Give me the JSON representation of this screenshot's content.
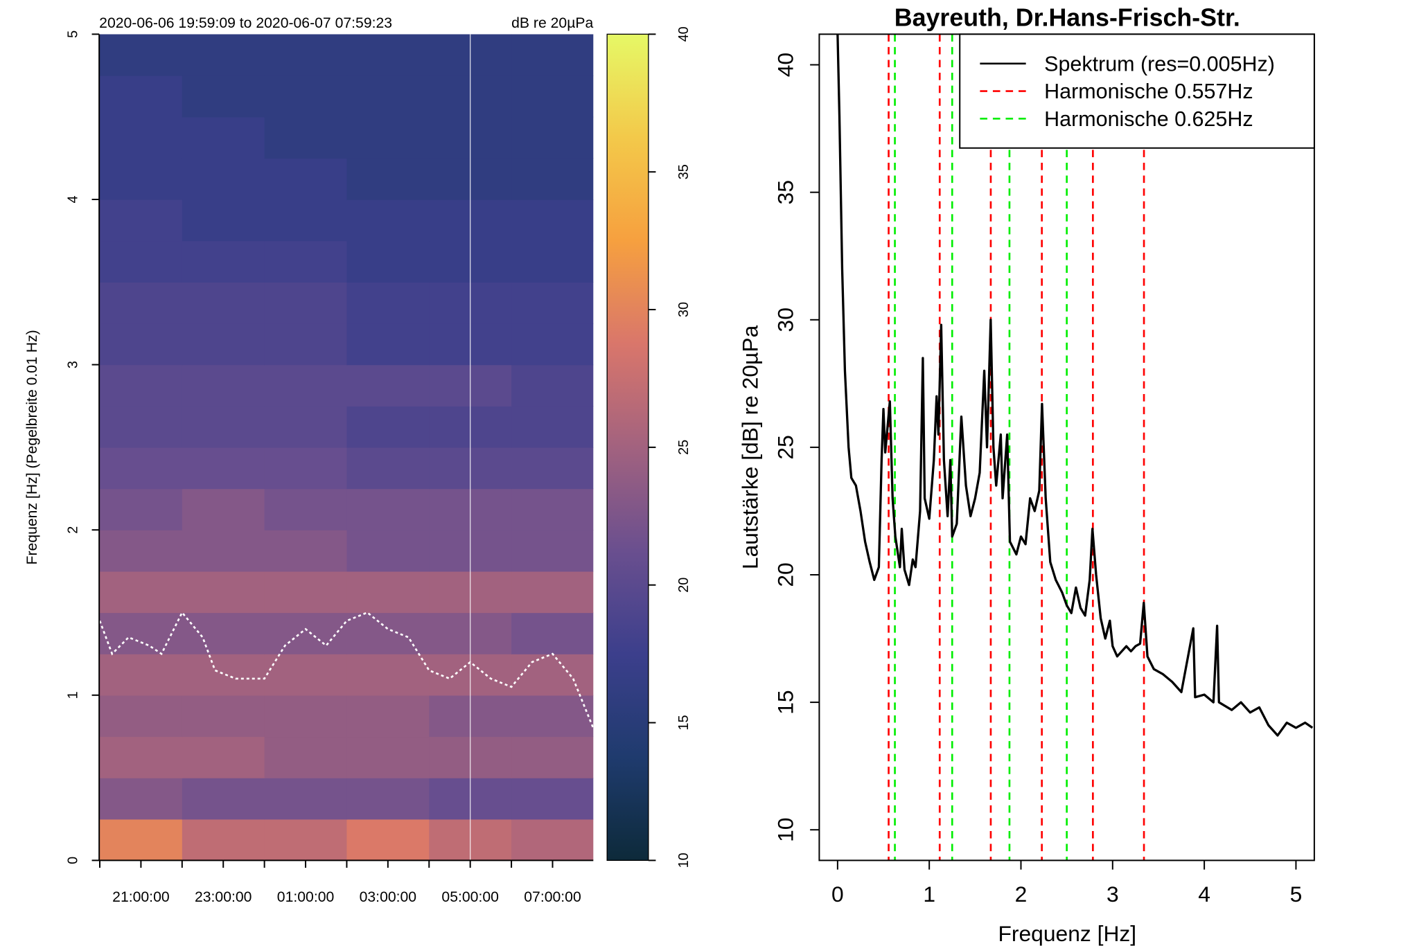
{
  "chart_data": [
    {
      "type": "heatmap",
      "title": "2020-06-06 19:59:09 to 2020-06-07 07:59:23",
      "colorbar_label": "dB re 20µPa",
      "ylabel": "Frequenz [Hz] (Pegelbreite 0.01 Hz)",
      "xlim": [
        19.986,
        31.99
      ],
      "ylim": [
        0,
        5
      ],
      "xticks": [
        {
          "value": 21,
          "label": "21:00:00"
        },
        {
          "value": 23,
          "label": "23:00:00"
        },
        {
          "value": 25,
          "label": "01:00:00"
        },
        {
          "value": 27,
          "label": "03:00:00"
        },
        {
          "value": 29,
          "label": "05:00:00"
        },
        {
          "value": 31,
          "label": "07:00:00"
        }
      ],
      "xminorticks": [
        20,
        22,
        24,
        26,
        28,
        30
      ],
      "yticks": [
        0,
        1,
        2,
        3,
        4,
        5
      ],
      "x_edges": [
        19.986,
        22,
        24,
        26,
        28,
        30,
        31.99
      ],
      "y_edges": [
        0,
        0.25,
        0.5,
        0.75,
        1,
        1.25,
        1.5,
        1.75,
        2,
        2.25,
        2.5,
        2.75,
        3,
        3.25,
        3.5,
        3.75,
        4,
        4.25,
        4.5,
        4.75,
        5
      ],
      "z": [
        [
          30,
          27,
          27,
          29,
          27,
          26
        ],
        [
          23,
          22,
          22,
          22,
          21,
          21
        ],
        [
          25,
          25,
          24,
          24,
          24,
          24
        ],
        [
          24,
          24,
          24,
          24,
          23,
          23
        ],
        [
          25,
          25,
          25,
          25,
          25,
          25
        ],
        [
          23,
          23,
          23,
          23,
          23,
          22
        ],
        [
          25,
          25,
          25,
          25,
          25,
          25
        ],
        [
          23,
          23,
          23,
          22,
          22,
          22
        ],
        [
          22,
          23,
          22,
          22,
          22,
          22
        ],
        [
          21,
          21,
          21,
          20,
          20,
          20
        ],
        [
          20,
          20,
          20,
          19,
          19,
          19
        ],
        [
          20,
          20,
          20,
          20,
          20,
          19
        ],
        [
          19,
          19,
          19,
          18,
          18,
          18
        ],
        [
          19,
          19,
          19,
          18,
          18,
          18
        ],
        [
          18,
          18,
          18,
          17,
          17,
          17
        ],
        [
          18,
          17,
          17,
          17,
          17,
          17
        ],
        [
          17,
          17,
          17,
          16,
          16,
          16
        ],
        [
          17,
          17,
          16,
          16,
          16,
          16
        ],
        [
          17,
          16,
          16,
          16,
          16,
          16
        ],
        [
          16,
          16,
          16,
          16,
          16,
          16
        ]
      ],
      "zlim": [
        10,
        40
      ],
      "zticks": [
        10,
        15,
        20,
        25,
        30,
        35,
        40
      ],
      "colormap": [
        "#0d2a3a",
        "#1f3b6e",
        "#3c3f8c",
        "#6a4f8f",
        "#a2627f",
        "#d9766b",
        "#f6a03f",
        "#f3c94a",
        "#e6f866"
      ],
      "overlay": {
        "color": "#ffffff",
        "x": [
          20.0,
          20.3,
          20.7,
          21.2,
          21.5,
          22.0,
          22.5,
          22.8,
          23.3,
          24.0,
          24.5,
          25.0,
          25.5,
          26.0,
          26.5,
          27.0,
          27.5,
          28.0,
          28.5,
          29.0,
          29.5,
          30.0,
          30.5,
          31.0,
          31.5,
          31.99
        ],
        "values": [
          1.45,
          1.25,
          1.35,
          1.3,
          1.25,
          1.5,
          1.35,
          1.15,
          1.1,
          1.1,
          1.3,
          1.4,
          1.3,
          1.45,
          1.5,
          1.4,
          1.35,
          1.15,
          1.1,
          1.2,
          1.1,
          1.05,
          1.2,
          1.25,
          1.1,
          0.8
        ]
      }
    },
    {
      "type": "line",
      "title": "Bayreuth, Dr.Hans-Frisch-Str.",
      "xlabel": "Frequenz [Hz]",
      "ylabel": "Lautstärke [dB] re 20µPa",
      "xlim": [
        -0.2,
        5.2
      ],
      "ylim": [
        8.8,
        41.2
      ],
      "xticks": [
        0,
        1,
        2,
        3,
        4,
        5
      ],
      "yticks": [
        10,
        15,
        20,
        25,
        30,
        35,
        40
      ],
      "legend": "top-right",
      "series": [
        {
          "name": "Spektrum (res=0.005Hz)",
          "color": "#000000",
          "x": [
            0.0,
            0.02,
            0.05,
            0.08,
            0.1,
            0.12,
            0.15,
            0.2,
            0.25,
            0.3,
            0.35,
            0.4,
            0.45,
            0.48,
            0.5,
            0.52,
            0.55,
            0.57,
            0.6,
            0.63,
            0.68,
            0.7,
            0.73,
            0.78,
            0.82,
            0.85,
            0.9,
            0.93,
            0.95,
            1.0,
            1.05,
            1.08,
            1.1,
            1.13,
            1.16,
            1.2,
            1.23,
            1.25,
            1.3,
            1.35,
            1.4,
            1.45,
            1.5,
            1.55,
            1.6,
            1.63,
            1.67,
            1.7,
            1.73,
            1.78,
            1.8,
            1.85,
            1.88,
            1.95,
            2.0,
            2.05,
            2.1,
            2.15,
            2.2,
            2.23,
            2.27,
            2.32,
            2.38,
            2.45,
            2.5,
            2.55,
            2.6,
            2.65,
            2.7,
            2.75,
            2.78,
            2.82,
            2.87,
            2.92,
            2.97,
            3.0,
            3.05,
            3.1,
            3.15,
            3.2,
            3.25,
            3.3,
            3.34,
            3.38,
            3.45,
            3.55,
            3.65,
            3.75,
            3.88,
            3.9,
            4.0,
            4.1,
            4.14,
            4.16,
            4.3,
            4.4,
            4.5,
            4.6,
            4.7,
            4.8,
            4.9,
            5.0,
            5.1,
            5.18
          ],
          "values": [
            41.2,
            38,
            32,
            28,
            26.5,
            25,
            23.8,
            23.5,
            22.5,
            21.3,
            20.5,
            19.8,
            20.3,
            24.5,
            26.5,
            24.8,
            26,
            26.8,
            23,
            21.5,
            20.3,
            21.8,
            20.2,
            19.6,
            20.6,
            20.3,
            22.5,
            28.5,
            23,
            22.2,
            24.5,
            27,
            25.5,
            29.8,
            24.5,
            22.3,
            24.5,
            21.5,
            22,
            26.2,
            23.5,
            22.3,
            23,
            24,
            28,
            25,
            30,
            25,
            23.5,
            25.5,
            23,
            25.5,
            21.3,
            20.8,
            21.5,
            21.2,
            23,
            22.5,
            23.3,
            26.7,
            23,
            20.5,
            19.8,
            19.3,
            18.8,
            18.5,
            19.5,
            18.7,
            18.4,
            19.8,
            21.8,
            20,
            18.3,
            17.5,
            18.2,
            17.2,
            16.8,
            17,
            17.2,
            17,
            17.2,
            17.3,
            18.9,
            16.8,
            16.3,
            16.1,
            15.8,
            15.4,
            17.9,
            15.2,
            15.3,
            15,
            18,
            15,
            14.7,
            15,
            14.6,
            14.8,
            14.1,
            13.7,
            14.2,
            14.0,
            14.2,
            14.0
          ]
        },
        {
          "name": "Harmonische 0.557Hz",
          "color": "#ff0000",
          "dash": true,
          "type": "vline",
          "x": [
            0.557,
            1.114,
            1.671,
            2.228,
            2.785,
            3.342
          ]
        },
        {
          "name": "Harmonische 0.625Hz",
          "color": "#00ee00",
          "dash": true,
          "type": "vline",
          "x": [
            0.625,
            1.25,
            1.875,
            2.5
          ]
        }
      ]
    }
  ]
}
